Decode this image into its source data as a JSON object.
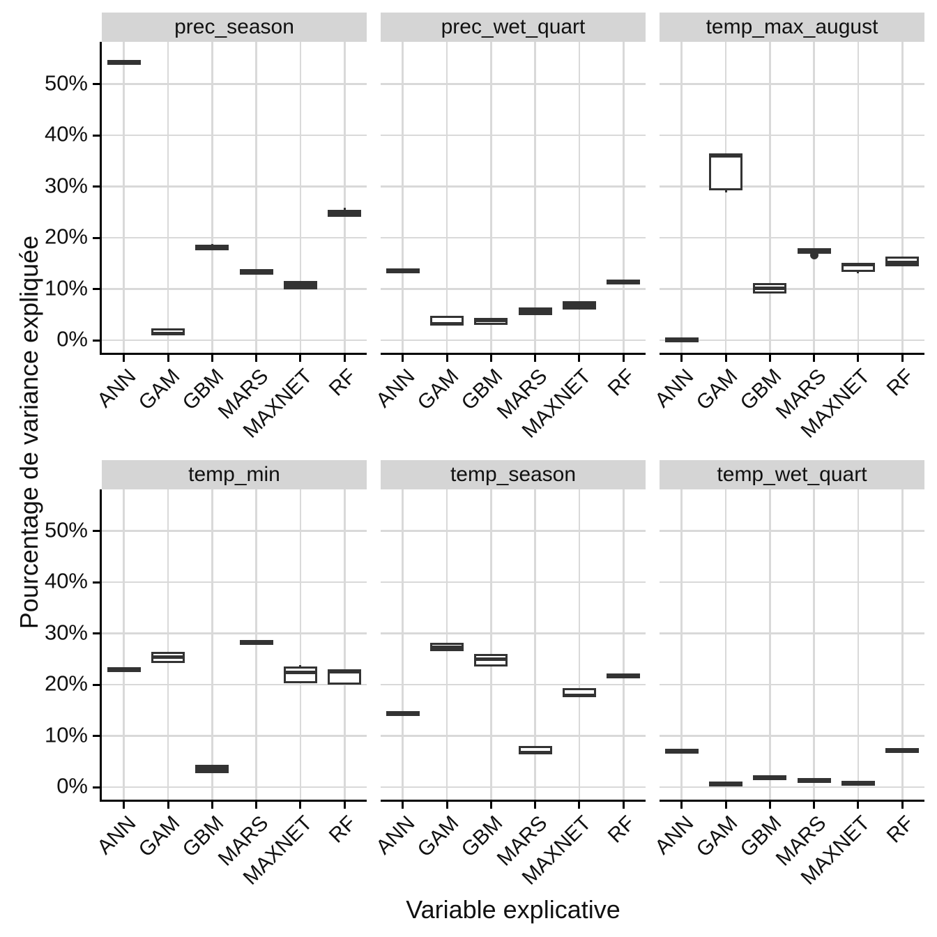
{
  "figure": {
    "y_axis_title": "Pourcentage de variance expliquée",
    "x_axis_title": "Variable explicative"
  },
  "axes": {
    "y_tick_labels": [
      "0%",
      "10%",
      "20%",
      "30%",
      "40%",
      "50%"
    ],
    "y_tick_values": [
      0,
      10,
      20,
      30,
      40,
      50
    ],
    "categories": [
      "ANN",
      "GAM",
      "GBM",
      "MARS",
      "MAXNET",
      "RF"
    ]
  },
  "colors": {
    "box_stroke": "#333333",
    "box_fill": "#ffffff",
    "grid": "#d9d9d9",
    "strip_fill": "#d5d5d5",
    "axis": "#000000",
    "text": "#111111"
  },
  "chart_data": {
    "type": "boxplot",
    "title": "",
    "xlabel": "Variable explicative",
    "ylabel": "Pourcentage de variance expliquée",
    "ylim": [
      -2,
      58
    ],
    "grid": "on",
    "legend": "none",
    "facet_layout": {
      "rows": 2,
      "cols": 3
    },
    "categories": [
      "ANN",
      "GAM",
      "GBM",
      "MARS",
      "MAXNET",
      "RF"
    ],
    "facets": [
      {
        "name": "prec_season",
        "boxes": [
          {
            "model": "ANN",
            "min": 53.9,
            "q1": 54.0,
            "median": 54.2,
            "q3": 54.4,
            "max": 54.5,
            "outliers": []
          },
          {
            "model": "GAM",
            "min": 0.7,
            "q1": 0.9,
            "median": 1.3,
            "q3": 2.3,
            "max": 2.4,
            "outliers": []
          },
          {
            "model": "GBM",
            "min": 17.6,
            "q1": 17.8,
            "median": 18.1,
            "q3": 18.4,
            "max": 18.8,
            "outliers": []
          },
          {
            "model": "MARS",
            "min": 12.9,
            "q1": 13.0,
            "median": 13.3,
            "q3": 13.6,
            "max": 13.8,
            "outliers": []
          },
          {
            "model": "MAXNET",
            "min": 10.0,
            "q1": 10.2,
            "median": 10.5,
            "q3": 11.3,
            "max": 11.4,
            "outliers": []
          },
          {
            "model": "RF",
            "min": 23.9,
            "q1": 24.1,
            "median": 24.8,
            "q3": 25.5,
            "max": 25.9,
            "outliers": []
          }
        ]
      },
      {
        "name": "prec_wet_quart",
        "boxes": [
          {
            "model": "ANN",
            "min": 13.4,
            "q1": 13.5,
            "median": 13.6,
            "q3": 13.8,
            "max": 13.9,
            "outliers": []
          },
          {
            "model": "GAM",
            "min": 2.8,
            "q1": 2.9,
            "median": 3.2,
            "q3": 4.7,
            "max": 4.8,
            "outliers": []
          },
          {
            "model": "GBM",
            "min": 2.9,
            "q1": 3.0,
            "median": 3.9,
            "q3": 4.4,
            "max": 4.5,
            "outliers": []
          },
          {
            "model": "MARS",
            "min": 4.8,
            "q1": 4.9,
            "median": 5.7,
            "q3": 6.4,
            "max": 6.5,
            "outliers": []
          },
          {
            "model": "MAXNET",
            "min": 6.1,
            "q1": 6.2,
            "median": 6.8,
            "q3": 7.3,
            "max": 7.4,
            "outliers": []
          },
          {
            "model": "RF",
            "min": 11.1,
            "q1": 11.2,
            "median": 11.3,
            "q3": 11.5,
            "max": 11.6,
            "outliers": []
          }
        ]
      },
      {
        "name": "temp_max_august",
        "boxes": [
          {
            "model": "ANN",
            "min": 0.1,
            "q1": 0.1,
            "median": 0.2,
            "q3": 0.3,
            "max": 0.3,
            "outliers": []
          },
          {
            "model": "GAM",
            "min": 28.8,
            "q1": 29.3,
            "median": 36.0,
            "q3": 36.4,
            "max": 36.5,
            "outliers": []
          },
          {
            "model": "GBM",
            "min": 9.0,
            "q1": 9.1,
            "median": 10.1,
            "q3": 11.1,
            "max": 11.2,
            "outliers": []
          },
          {
            "model": "MARS",
            "min": 17.0,
            "q1": 17.1,
            "median": 17.4,
            "q3": 17.7,
            "max": 17.8,
            "outliers": [
              16.6
            ]
          },
          {
            "model": "MAXNET",
            "min": 13.0,
            "q1": 13.4,
            "median": 14.7,
            "q3": 15.0,
            "max": 15.1,
            "outliers": []
          },
          {
            "model": "RF",
            "min": 14.3,
            "q1": 14.4,
            "median": 15.2,
            "q3": 16.3,
            "max": 16.4,
            "outliers": []
          }
        ]
      },
      {
        "name": "temp_min",
        "boxes": [
          {
            "model": "ANN",
            "min": 22.7,
            "q1": 22.8,
            "median": 22.9,
            "q3": 23.1,
            "max": 23.2,
            "outliers": []
          },
          {
            "model": "GAM",
            "min": 24.1,
            "q1": 24.2,
            "median": 25.4,
            "q3": 26.4,
            "max": 26.5,
            "outliers": []
          },
          {
            "model": "GBM",
            "min": 2.9,
            "q1": 3.0,
            "median": 3.5,
            "q3": 4.1,
            "max": 4.2,
            "outliers": []
          },
          {
            "model": "MARS",
            "min": 27.9,
            "q1": 28.0,
            "median": 28.2,
            "q3": 28.4,
            "max": 28.5,
            "outliers": []
          },
          {
            "model": "MAXNET",
            "min": 20.2,
            "q1": 20.3,
            "median": 22.4,
            "q3": 23.5,
            "max": 23.8,
            "outliers": []
          },
          {
            "model": "RF",
            "min": 19.9,
            "q1": 20.0,
            "median": 22.5,
            "q3": 23.0,
            "max": 23.1,
            "outliers": []
          }
        ]
      },
      {
        "name": "temp_season",
        "boxes": [
          {
            "model": "ANN",
            "min": 14.2,
            "q1": 14.3,
            "median": 14.4,
            "q3": 14.6,
            "max": 14.7,
            "outliers": []
          },
          {
            "model": "GAM",
            "min": 26.4,
            "q1": 26.5,
            "median": 27.3,
            "q3": 28.1,
            "max": 28.2,
            "outliers": []
          },
          {
            "model": "GBM",
            "min": 23.4,
            "q1": 23.5,
            "median": 25.0,
            "q3": 26.0,
            "max": 26.1,
            "outliers": []
          },
          {
            "model": "MARS",
            "min": 6.3,
            "q1": 6.4,
            "median": 6.7,
            "q3": 8.0,
            "max": 8.1,
            "outliers": []
          },
          {
            "model": "MAXNET",
            "min": 17.4,
            "q1": 17.5,
            "median": 17.9,
            "q3": 19.3,
            "max": 19.4,
            "outliers": []
          },
          {
            "model": "RF",
            "min": 21.4,
            "q1": 21.5,
            "median": 21.7,
            "q3": 21.9,
            "max": 22.0,
            "outliers": []
          }
        ]
      },
      {
        "name": "temp_wet_quart",
        "boxes": [
          {
            "model": "ANN",
            "min": 6.8,
            "q1": 6.9,
            "median": 7.0,
            "q3": 7.2,
            "max": 7.3,
            "outliers": []
          },
          {
            "model": "GAM",
            "min": 0.4,
            "q1": 0.5,
            "median": 0.6,
            "q3": 0.8,
            "max": 0.9,
            "outliers": []
          },
          {
            "model": "GBM",
            "min": 1.6,
            "q1": 1.7,
            "median": 1.8,
            "q3": 2.0,
            "max": 2.1,
            "outliers": []
          },
          {
            "model": "MARS",
            "min": 1.1,
            "q1": 1.2,
            "median": 1.3,
            "q3": 1.5,
            "max": 1.6,
            "outliers": []
          },
          {
            "model": "MAXNET",
            "min": 0.6,
            "q1": 0.7,
            "median": 0.8,
            "q3": 1.0,
            "max": 1.1,
            "outliers": []
          },
          {
            "model": "RF",
            "min": 6.8,
            "q1": 6.9,
            "median": 7.2,
            "q3": 7.4,
            "max": 7.5,
            "outliers": []
          }
        ]
      }
    ]
  }
}
